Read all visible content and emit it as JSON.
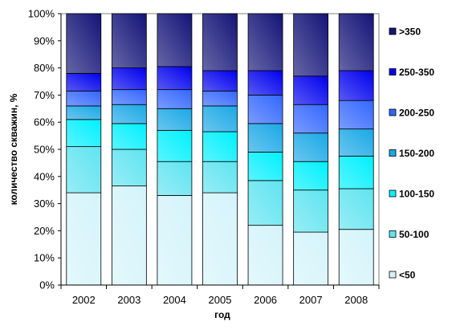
{
  "chart_data": {
    "type": "bar",
    "stacking": "percent",
    "xlabel": "год",
    "ylabel": "количество скважин, %",
    "ylim": [
      0,
      100
    ],
    "y_ticks": [
      "0%",
      "10%",
      "20%",
      "30%",
      "40%",
      "50%",
      "60%",
      "70%",
      "80%",
      "90%",
      "100%"
    ],
    "categories": [
      "2002",
      "2003",
      "2004",
      "2005",
      "2006",
      "2007",
      "2008"
    ],
    "legend_position": "right",
    "grid": false,
    "series": [
      {
        "name": "<50",
        "color": "#d4f4fa",
        "values": [
          34.0,
          36.5,
          33.0,
          34.0,
          22.0,
          19.5,
          20.5
        ]
      },
      {
        "name": "50-100",
        "color": "#5fe4f0",
        "values": [
          17.0,
          13.5,
          12.5,
          11.5,
          16.5,
          15.5,
          15.0
        ]
      },
      {
        "name": "100-150",
        "color": "#00f0ff",
        "values": [
          10.0,
          9.5,
          11.5,
          11.0,
          10.5,
          10.5,
          12.0
        ]
      },
      {
        "name": "150-200",
        "color": "#1aa8e6",
        "values": [
          5.0,
          7.0,
          8.0,
          9.5,
          10.5,
          10.5,
          10.0
        ]
      },
      {
        "name": "200-250",
        "color": "#3366ff",
        "values": [
          5.5,
          5.5,
          7.0,
          5.5,
          10.5,
          10.5,
          10.5
        ]
      },
      {
        "name": "250-350",
        "color": "#0000ee",
        "values": [
          6.5,
          8.0,
          8.5,
          7.5,
          9.0,
          10.5,
          11.0
        ]
      },
      {
        "name": ">350",
        "color": "#141478",
        "values": [
          22.0,
          20.0,
          19.5,
          21.0,
          21.0,
          23.0,
          21.0
        ]
      }
    ]
  }
}
